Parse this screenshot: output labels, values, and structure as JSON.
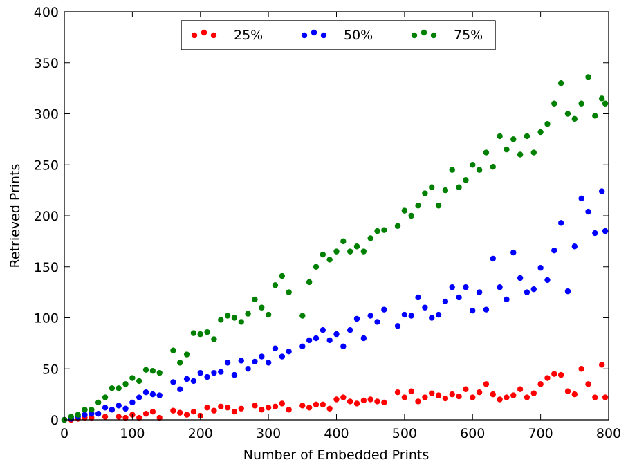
{
  "chart_data": {
    "type": "scatter",
    "title": "",
    "xlabel": "Number of Embedded Prints",
    "ylabel": "Retrieved Prints",
    "xlim": [
      0,
      800
    ],
    "ylim": [
      0,
      400
    ],
    "xticks": [
      "0",
      "100",
      "200",
      "300",
      "400",
      "500",
      "600",
      "700",
      "800"
    ],
    "yticks": [
      "0",
      "50",
      "100",
      "150",
      "200",
      "250",
      "300",
      "350",
      "400"
    ],
    "grid": false,
    "legend_position": "top-center",
    "series": [
      {
        "name": "25%",
        "color": "#ff0000",
        "points": [
          [
            0,
            0
          ],
          [
            10,
            0
          ],
          [
            20,
            1
          ],
          [
            30,
            2
          ],
          [
            40,
            2
          ],
          [
            60,
            3
          ],
          [
            70,
            10
          ],
          [
            80,
            3
          ],
          [
            90,
            2
          ],
          [
            100,
            5
          ],
          [
            110,
            2
          ],
          [
            120,
            6
          ],
          [
            130,
            8
          ],
          [
            140,
            2
          ],
          [
            160,
            9
          ],
          [
            170,
            7
          ],
          [
            180,
            5
          ],
          [
            190,
            8
          ],
          [
            200,
            4
          ],
          [
            210,
            12
          ],
          [
            220,
            9
          ],
          [
            230,
            13
          ],
          [
            240,
            12
          ],
          [
            250,
            8
          ],
          [
            260,
            11
          ],
          [
            280,
            14
          ],
          [
            290,
            10
          ],
          [
            300,
            12
          ],
          [
            310,
            13
          ],
          [
            320,
            16
          ],
          [
            330,
            10
          ],
          [
            350,
            14
          ],
          [
            360,
            12
          ],
          [
            370,
            15
          ],
          [
            380,
            15
          ],
          [
            390,
            11
          ],
          [
            400,
            20
          ],
          [
            410,
            22
          ],
          [
            420,
            18
          ],
          [
            430,
            16
          ],
          [
            440,
            19
          ],
          [
            450,
            20
          ],
          [
            460,
            18
          ],
          [
            470,
            17
          ],
          [
            490,
            27
          ],
          [
            500,
            22
          ],
          [
            510,
            28
          ],
          [
            520,
            18
          ],
          [
            530,
            22
          ],
          [
            540,
            26
          ],
          [
            550,
            24
          ],
          [
            560,
            21
          ],
          [
            570,
            25
          ],
          [
            580,
            23
          ],
          [
            590,
            30
          ],
          [
            600,
            22
          ],
          [
            610,
            27
          ],
          [
            620,
            35
          ],
          [
            630,
            25
          ],
          [
            640,
            20
          ],
          [
            650,
            22
          ],
          [
            660,
            24
          ],
          [
            670,
            30
          ],
          [
            680,
            22
          ],
          [
            690,
            26
          ],
          [
            700,
            35
          ],
          [
            710,
            41
          ],
          [
            720,
            45
          ],
          [
            730,
            44
          ],
          [
            740,
            28
          ],
          [
            750,
            25
          ],
          [
            760,
            50
          ],
          [
            770,
            35
          ],
          [
            780,
            22
          ],
          [
            790,
            54
          ],
          [
            795,
            22
          ]
        ]
      },
      {
        "name": "50%",
        "color": "#0000ff",
        "points": [
          [
            0,
            0
          ],
          [
            10,
            1
          ],
          [
            20,
            3
          ],
          [
            30,
            5
          ],
          [
            40,
            6
          ],
          [
            50,
            6
          ],
          [
            60,
            12
          ],
          [
            70,
            10
          ],
          [
            80,
            14
          ],
          [
            90,
            11
          ],
          [
            100,
            17
          ],
          [
            110,
            22
          ],
          [
            120,
            27
          ],
          [
            130,
            25
          ],
          [
            140,
            24
          ],
          [
            160,
            37
          ],
          [
            170,
            30
          ],
          [
            180,
            40
          ],
          [
            190,
            38
          ],
          [
            200,
            46
          ],
          [
            210,
            42
          ],
          [
            220,
            46
          ],
          [
            230,
            47
          ],
          [
            240,
            56
          ],
          [
            250,
            44
          ],
          [
            260,
            58
          ],
          [
            270,
            50
          ],
          [
            280,
            57
          ],
          [
            290,
            62
          ],
          [
            300,
            56
          ],
          [
            310,
            70
          ],
          [
            320,
            62
          ],
          [
            330,
            67
          ],
          [
            350,
            72
          ],
          [
            360,
            78
          ],
          [
            370,
            80
          ],
          [
            380,
            88
          ],
          [
            390,
            78
          ],
          [
            400,
            84
          ],
          [
            410,
            72
          ],
          [
            420,
            88
          ],
          [
            430,
            99
          ],
          [
            440,
            80
          ],
          [
            450,
            102
          ],
          [
            460,
            96
          ],
          [
            470,
            108
          ],
          [
            490,
            92
          ],
          [
            500,
            103
          ],
          [
            510,
            102
          ],
          [
            520,
            120
          ],
          [
            530,
            110
          ],
          [
            540,
            100
          ],
          [
            550,
            103
          ],
          [
            560,
            116
          ],
          [
            570,
            130
          ],
          [
            580,
            120
          ],
          [
            590,
            130
          ],
          [
            600,
            107
          ],
          [
            610,
            125
          ],
          [
            620,
            108
          ],
          [
            630,
            158
          ],
          [
            640,
            130
          ],
          [
            650,
            118
          ],
          [
            660,
            164
          ],
          [
            670,
            139
          ],
          [
            680,
            125
          ],
          [
            690,
            128
          ],
          [
            700,
            149
          ],
          [
            710,
            137
          ],
          [
            720,
            166
          ],
          [
            730,
            193
          ],
          [
            740,
            126
          ],
          [
            750,
            170
          ],
          [
            760,
            217
          ],
          [
            770,
            204
          ],
          [
            780,
            183
          ],
          [
            790,
            224
          ],
          [
            795,
            185
          ]
        ]
      },
      {
        "name": "75%",
        "color": "#008000",
        "points": [
          [
            0,
            0
          ],
          [
            10,
            3
          ],
          [
            20,
            5
          ],
          [
            30,
            10
          ],
          [
            40,
            10
          ],
          [
            50,
            17
          ],
          [
            60,
            22
          ],
          [
            70,
            31
          ],
          [
            80,
            31
          ],
          [
            90,
            35
          ],
          [
            100,
            41
          ],
          [
            110,
            38
          ],
          [
            120,
            49
          ],
          [
            130,
            48
          ],
          [
            140,
            46
          ],
          [
            160,
            68
          ],
          [
            170,
            56
          ],
          [
            180,
            64
          ],
          [
            190,
            85
          ],
          [
            200,
            84
          ],
          [
            210,
            86
          ],
          [
            220,
            79
          ],
          [
            230,
            98
          ],
          [
            240,
            102
          ],
          [
            250,
            100
          ],
          [
            260,
            96
          ],
          [
            270,
            104
          ],
          [
            280,
            118
          ],
          [
            290,
            110
          ],
          [
            300,
            103
          ],
          [
            310,
            132
          ],
          [
            320,
            141
          ],
          [
            330,
            125
          ],
          [
            350,
            102
          ],
          [
            360,
            135
          ],
          [
            370,
            150
          ],
          [
            380,
            162
          ],
          [
            390,
            157
          ],
          [
            400,
            165
          ],
          [
            410,
            175
          ],
          [
            420,
            165
          ],
          [
            430,
            170
          ],
          [
            440,
            165
          ],
          [
            450,
            178
          ],
          [
            460,
            185
          ],
          [
            470,
            186
          ],
          [
            490,
            190
          ],
          [
            500,
            205
          ],
          [
            510,
            200
          ],
          [
            520,
            210
          ],
          [
            530,
            222
          ],
          [
            540,
            228
          ],
          [
            550,
            210
          ],
          [
            560,
            225
          ],
          [
            570,
            245
          ],
          [
            580,
            228
          ],
          [
            590,
            235
          ],
          [
            600,
            250
          ],
          [
            610,
            245
          ],
          [
            620,
            262
          ],
          [
            630,
            248
          ],
          [
            640,
            278
          ],
          [
            650,
            265
          ],
          [
            660,
            275
          ],
          [
            670,
            260
          ],
          [
            680,
            278
          ],
          [
            690,
            262
          ],
          [
            700,
            282
          ],
          [
            710,
            290
          ],
          [
            720,
            310
          ],
          [
            730,
            330
          ],
          [
            740,
            300
          ],
          [
            750,
            295
          ],
          [
            760,
            310
          ],
          [
            770,
            336
          ],
          [
            780,
            298
          ],
          [
            790,
            315
          ],
          [
            795,
            310
          ]
        ]
      }
    ]
  }
}
